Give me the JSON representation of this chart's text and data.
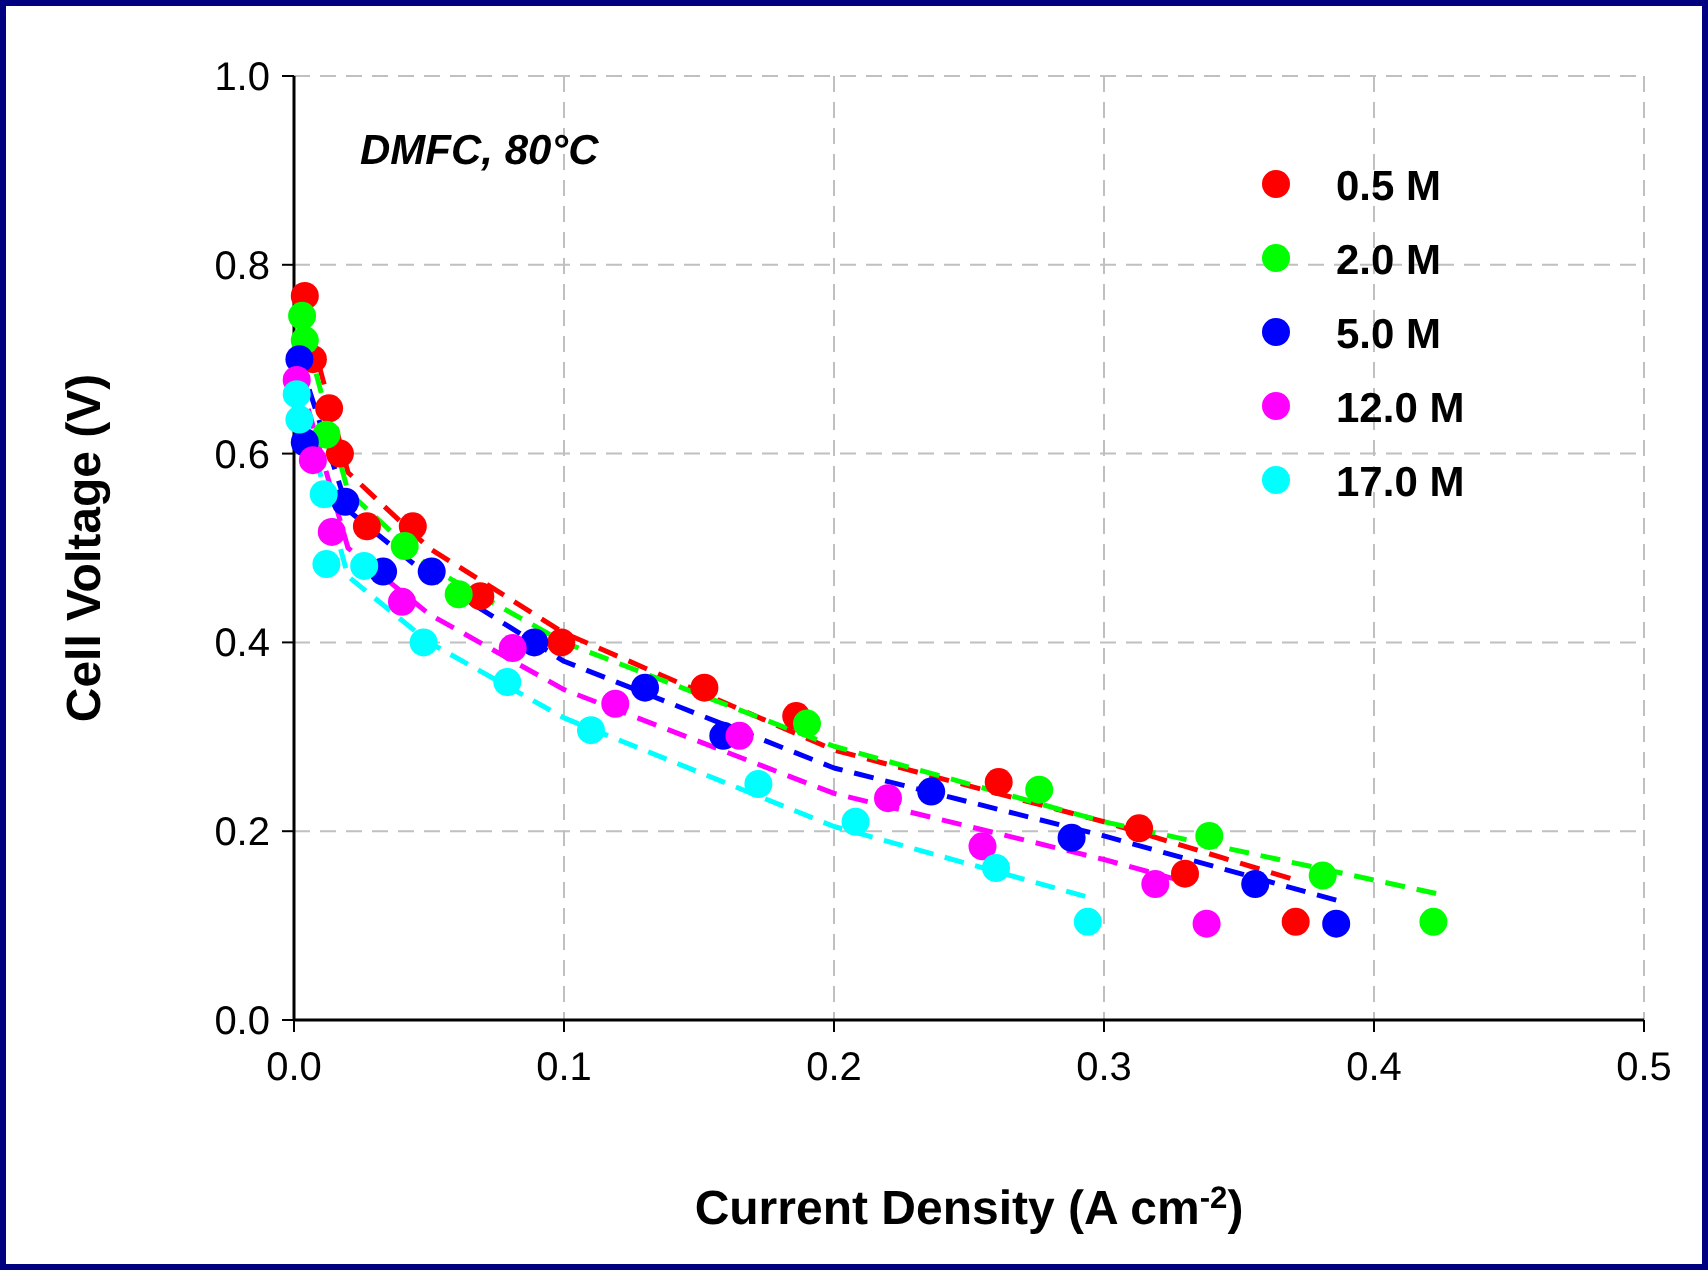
{
  "chart_data": {
    "type": "scatter",
    "xlabel": "Current Density (A cm$^{-2}$)",
    "ylabel": "Cell Voltage (V)",
    "annotations": [
      "DMFC, 80°C"
    ],
    "xlim": [
      0,
      0.5
    ],
    "xticks": [
      {
        "value": 0,
        "label": "0.0"
      },
      0.1,
      0.2,
      0.3,
      0.4,
      0.5
    ],
    "ylim": [
      0,
      1
    ],
    "yticks": [
      {
        "value": 0,
        "label": "0.0"
      },
      0.2,
      0.4,
      0.6,
      0.8,
      {
        "value": 1,
        "label": "1.0"
      }
    ],
    "grid": true,
    "legend": "top right",
    "marker": "circle",
    "series": [
      {
        "name": "0.5 M",
        "color": "#ff0000",
        "x": [
          0.004,
          0.007,
          0.013,
          0.017,
          0.027,
          0.044,
          0.069,
          0.099,
          0.152,
          0.186,
          0.261,
          0.313,
          0.33,
          0.371
        ],
        "values": [
          0.767,
          0.7,
          0.648,
          0.6,
          0.523,
          0.523,
          0.449,
          0.4,
          0.352,
          0.322,
          0.252,
          0.203,
          0.155,
          0.104
        ]
      },
      {
        "name": "2.0 M",
        "color": "#00ff00",
        "x": [
          0.003,
          0.004,
          0.012,
          0.041,
          0.061,
          0.19,
          0.276,
          0.339,
          0.381,
          0.422
        ],
        "values": [
          0.746,
          0.72,
          0.62,
          0.502,
          0.451,
          0.314,
          0.244,
          0.195,
          0.153,
          0.104
        ]
      },
      {
        "name": "5.0 M",
        "color": "#0000ff",
        "x": [
          0.002,
          0.004,
          0.019,
          0.033,
          0.051,
          0.089,
          0.13,
          0.159,
          0.236,
          0.288,
          0.356,
          0.386
        ],
        "values": [
          0.7,
          0.612,
          0.549,
          0.475,
          0.475,
          0.4,
          0.352,
          0.301,
          0.242,
          0.193,
          0.144,
          0.102
        ]
      },
      {
        "name": "12.0 M",
        "color": "#ff00ff",
        "x": [
          0.001,
          0.007,
          0.014,
          0.04,
          0.081,
          0.119,
          0.165,
          0.22,
          0.255,
          0.319,
          0.338
        ],
        "values": [
          0.678,
          0.593,
          0.517,
          0.443,
          0.394,
          0.335,
          0.301,
          0.235,
          0.184,
          0.144,
          0.102
        ]
      },
      {
        "name": "17.0 M",
        "color": "#00ffff",
        "x": [
          0.001,
          0.002,
          0.011,
          0.012,
          0.026,
          0.048,
          0.079,
          0.11,
          0.172,
          0.208,
          0.26,
          0.294
        ],
        "values": [
          0.663,
          0.636,
          0.557,
          0.483,
          0.481,
          0.4,
          0.358,
          0.307,
          0.25,
          0.21,
          0.161,
          0.104
        ]
      },
      {
        "type": "line",
        "color": "#ff0000",
        "marker": "none",
        "line_style": "dashed",
        "x": [
          0.003,
          0.02,
          0.05,
          0.1,
          0.2,
          0.3,
          0.369
        ],
        "values": [
          0.76,
          0.58,
          0.5,
          0.41,
          0.286,
          0.21,
          0.15
        ]
      },
      {
        "type": "line",
        "color": "#00ff00",
        "marker": "none",
        "line_style": "dashed",
        "x": [
          0.002,
          0.02,
          0.05,
          0.1,
          0.2,
          0.3,
          0.423
        ],
        "values": [
          0.75,
          0.56,
          0.48,
          0.4,
          0.29,
          0.21,
          0.134
        ]
      },
      {
        "type": "line",
        "color": "#0000ff",
        "marker": "none",
        "line_style": "dashed",
        "x": [
          0.002,
          0.02,
          0.05,
          0.1,
          0.2,
          0.3,
          0.386
        ],
        "values": [
          0.7,
          0.54,
          0.47,
          0.38,
          0.267,
          0.195,
          0.127
        ]
      },
      {
        "type": "line",
        "color": "#ff00ff",
        "marker": "none",
        "line_style": "dashed",
        "x": [
          0.002,
          0.02,
          0.05,
          0.1,
          0.2,
          0.3,
          0.328
        ],
        "values": [
          0.68,
          0.5,
          0.43,
          0.35,
          0.24,
          0.17,
          0.148
        ]
      },
      {
        "type": "line",
        "color": "#00ffff",
        "marker": "none",
        "line_style": "dashed",
        "x": [
          0.002,
          0.02,
          0.05,
          0.1,
          0.2,
          0.293
        ],
        "values": [
          0.66,
          0.47,
          0.4,
          0.32,
          0.205,
          0.131
        ]
      }
    ]
  }
}
